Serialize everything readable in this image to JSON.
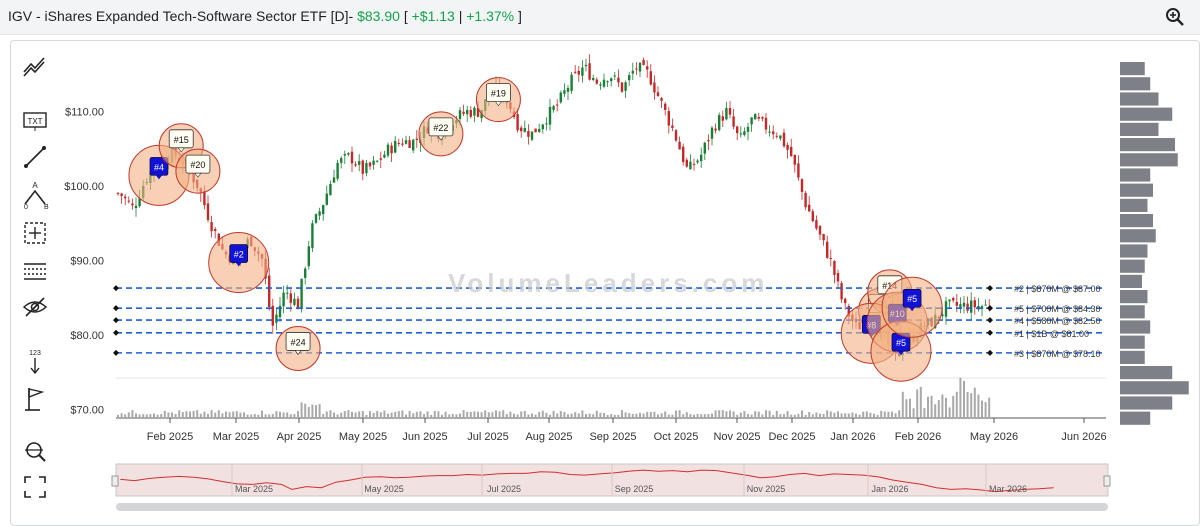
{
  "header": {
    "symbol_title": "IGV - iShares Expanded Tech-Software Sector ETF [D]-",
    "price": "$83.90",
    "bracket_open": "[",
    "change": "+$1.13",
    "sep": "|",
    "change_pct": "+1.37%",
    "bracket_close": "]"
  },
  "watermark": "VolumeLeaders.com",
  "toolbar": [
    "trend-lines-icon",
    "text-tool-icon",
    "line-tool-icon",
    "abcd-pattern-icon",
    "crosshair-icon",
    "fib-grid-icon",
    "hide-eye-icon",
    "measure-tool-icon",
    "flag-marker-icon",
    "zoom-search-icon",
    "fullscreen-icon"
  ],
  "colors": {
    "up": "#1a7f37",
    "down": "#c62828",
    "level": "#1f5fd6",
    "circle_fill": "#f4b183",
    "circle_stroke": "#c0392b",
    "volume": "#a9a9a9",
    "profile": "#7d8187",
    "navigator_line": "#d32f2f"
  },
  "chart_data": {
    "type": "candlestick",
    "title": "IGV - iShares Expanded Tech-Software Sector ETF [D]",
    "y_ticks": [
      "$110.00",
      "$100.00",
      "$90.00",
      "$80.00",
      "$70.00"
    ],
    "y_tick_values": [
      110,
      100,
      90,
      80,
      70
    ],
    "x_ticks": [
      "Feb 2025",
      "Mar 2025",
      "Apr 2025",
      "May 2025",
      "Jun 2025",
      "Jul 2025",
      "Aug 2025",
      "Sep 2025",
      "Oct 2025",
      "Nov 2025",
      "Dec 2025",
      "Jan 2026",
      "Feb 2026",
      "May 2026",
      "Jun 2026"
    ],
    "price_path": [
      [
        "2025-01-15",
        99
      ],
      [
        "2025-01-22",
        97
      ],
      [
        "2025-01-29",
        101
      ],
      [
        "2025-02-05",
        103
      ],
      [
        "2025-02-12",
        104.5
      ],
      [
        "2025-02-19",
        103
      ],
      [
        "2025-02-26",
        100
      ],
      [
        "2025-03-05",
        95
      ],
      [
        "2025-03-12",
        91
      ],
      [
        "2025-03-19",
        90
      ],
      [
        "2025-03-26",
        93
      ],
      [
        "2025-04-02",
        90
      ],
      [
        "2025-04-07",
        81
      ],
      [
        "2025-04-14",
        86
      ],
      [
        "2025-04-21",
        84
      ],
      [
        "2025-04-28",
        94
      ],
      [
        "2025-05-05",
        98
      ],
      [
        "2025-05-12",
        103
      ],
      [
        "2025-05-19",
        104
      ],
      [
        "2025-05-26",
        102
      ],
      [
        "2025-06-02",
        103
      ],
      [
        "2025-06-09",
        105
      ],
      [
        "2025-06-16",
        106
      ],
      [
        "2025-06-23",
        106
      ],
      [
        "2025-06-30",
        108
      ],
      [
        "2025-07-07",
        107
      ],
      [
        "2025-07-14",
        109
      ],
      [
        "2025-07-21",
        110
      ],
      [
        "2025-07-28",
        110
      ],
      [
        "2025-08-04",
        113
      ],
      [
        "2025-08-11",
        112
      ],
      [
        "2025-08-18",
        108
      ],
      [
        "2025-08-25",
        107
      ],
      [
        "2025-09-01",
        109
      ],
      [
        "2025-09-08",
        111
      ],
      [
        "2025-09-15",
        114
      ],
      [
        "2025-09-22",
        116
      ],
      [
        "2025-09-29",
        114
      ],
      [
        "2025-10-06",
        115
      ],
      [
        "2025-10-13",
        113
      ],
      [
        "2025-10-20",
        116
      ],
      [
        "2025-10-27",
        115
      ],
      [
        "2025-11-03",
        111
      ],
      [
        "2025-11-10",
        107
      ],
      [
        "2025-11-17",
        102
      ],
      [
        "2025-11-24",
        104
      ],
      [
        "2025-12-01",
        108
      ],
      [
        "2025-12-08",
        110
      ],
      [
        "2025-12-15",
        106
      ],
      [
        "2025-12-22",
        109
      ],
      [
        "2026-01-05",
        107
      ],
      [
        "2026-01-12",
        104
      ],
      [
        "2026-01-19",
        98
      ],
      [
        "2026-01-26",
        94
      ],
      [
        "2026-02-02",
        90
      ],
      [
        "2026-02-09",
        84
      ],
      [
        "2026-02-16",
        81
      ],
      [
        "2026-02-23",
        82
      ],
      [
        "2026-03-02",
        80
      ],
      [
        "2026-03-09",
        77
      ],
      [
        "2026-03-16",
        79
      ],
      [
        "2026-03-23",
        81
      ],
      [
        "2026-03-30",
        82
      ],
      [
        "2026-04-06",
        83.9
      ]
    ],
    "markers": [
      {
        "label": "#4",
        "date": "2025-02-05",
        "price": 102.5,
        "style": "blue"
      },
      {
        "label": "#15",
        "date": "2025-02-17",
        "price": 106.2,
        "style": "white"
      },
      {
        "label": "#20",
        "date": "2025-02-26",
        "price": 102.8,
        "style": "white"
      },
      {
        "label": "#2",
        "date": "2025-03-20",
        "price": 90.8,
        "style": "blue"
      },
      {
        "label": "#24",
        "date": "2025-04-21",
        "price": 79.0,
        "style": "white"
      },
      {
        "label": "#22",
        "date": "2025-07-07",
        "price": 107.8,
        "style": "white"
      },
      {
        "label": "#19",
        "date": "2025-08-07",
        "price": 112.4,
        "style": "white"
      },
      {
        "label": "#25",
        "date": "2026-03-01",
        "price": 84.1,
        "style": "white"
      },
      {
        "label": "#14",
        "date": "2026-03-06",
        "price": 86.6,
        "style": "white"
      },
      {
        "label": "#8",
        "date": "2026-02-24",
        "price": 81.3,
        "style": "blue"
      },
      {
        "label": "#10",
        "date": "2026-03-10",
        "price": 82.8,
        "style": "blue"
      },
      {
        "label": "#5",
        "date": "2026-03-12",
        "price": 78.9,
        "style": "blue"
      },
      {
        "label": "#5",
        "date": "2026-03-18",
        "price": 84.8,
        "style": "blue"
      }
    ],
    "levels": [
      {
        "price": 86.3,
        "label": "#2 | $870M @ $87.00"
      },
      {
        "price": 83.6,
        "label": "#5 | $700M @ $84.30"
      },
      {
        "price": 82.0,
        "label": "#4 | $580M @ $82.50"
      },
      {
        "price": 80.3,
        "label": "#1 | $1B @ $81.00"
      },
      {
        "price": 77.6,
        "label": "#3 | $870M @ $78.10"
      }
    ],
    "volume_profile": [
      0.45,
      0.55,
      0.7,
      0.95,
      0.7,
      1.0,
      1.05,
      0.55,
      0.6,
      0.5,
      0.6,
      0.65,
      0.5,
      0.45,
      0.4,
      0.5,
      0.45,
      0.55,
      0.45,
      0.45,
      0.95,
      1.25,
      0.95,
      0.55
    ],
    "navigator_labels": [
      "Mar 2025",
      "May 2025",
      "Jul 2025",
      "Sep 2025",
      "Nov 2025",
      "Jan 2026",
      "Mar 2026"
    ]
  }
}
